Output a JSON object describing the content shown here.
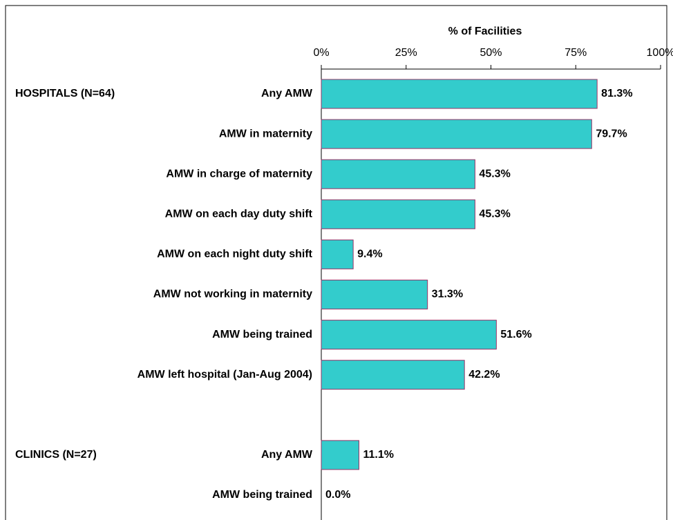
{
  "chart_data": {
    "type": "barh",
    "title": "% of Facilities",
    "annotations": [
      "HOSPITALS (N=64)",
      "CLINICS (N=27)"
    ],
    "categories": [
      "Any AMW",
      "AMW in maternity",
      "AMW in charge of maternity",
      "AMW on each day duty shift",
      "AMW on each night duty shift",
      "AMW not working in maternity",
      "AMW being trained",
      "AMW left hospital (Jan-Aug 2004)",
      null,
      "Any AMW",
      "AMW being trained"
    ],
    "values": [
      81.3,
      79.7,
      45.3,
      45.3,
      9.4,
      31.3,
      51.6,
      42.2,
      null,
      11.1,
      0.0
    ],
    "value_labels": [
      "81.3%",
      "79.7%",
      "45.3%",
      "45.3%",
      "9.4%",
      "31.3%",
      "51.6%",
      "42.2%",
      null,
      "11.1%",
      "0.0%"
    ],
    "color": "#33cccc",
    "edge_color": "#993366",
    "xlim": [
      0,
      100
    ],
    "xticks": [
      {
        "value": 0,
        "label": "0%"
      },
      {
        "value": 25,
        "label": "25%"
      },
      {
        "value": 50,
        "label": "50%"
      },
      {
        "value": 75,
        "label": "75%"
      },
      {
        "value": 100,
        "label": "100%"
      }
    ]
  }
}
